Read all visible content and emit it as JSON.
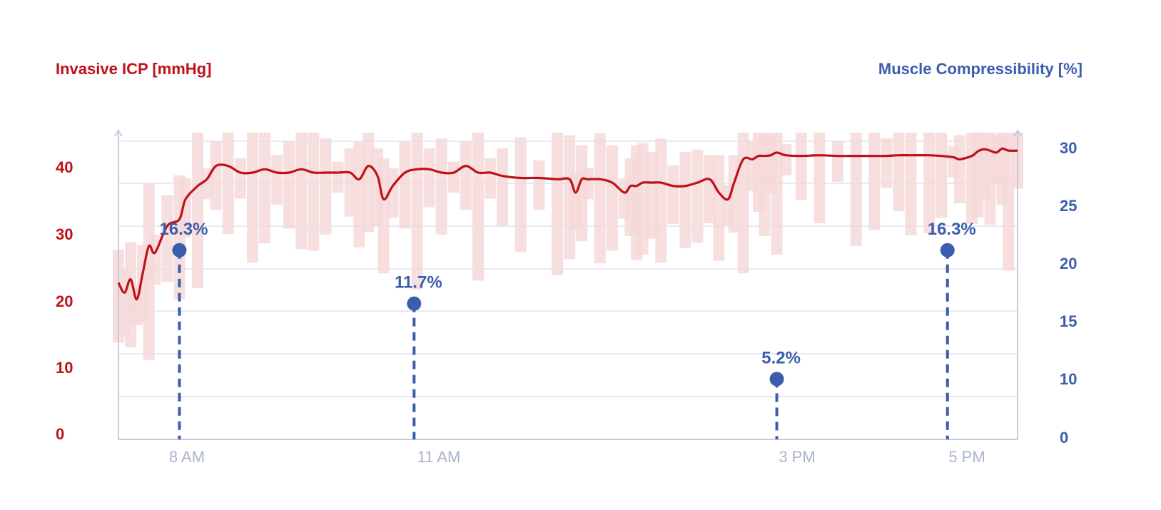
{
  "colors": {
    "icp": "#c0111a",
    "icp_band": "#f4d9d8",
    "muscle": "#3b5dae",
    "grid": "#d9dcea",
    "axis": "#c5cadc",
    "x_tick": "#aab3cc"
  },
  "chart_data": {
    "type": "line",
    "left_axis": {
      "label": "Invasive ICP [mmHg]",
      "ticks": [
        "40",
        "30",
        "20",
        "10",
        "0"
      ],
      "range": [
        0,
        45
      ]
    },
    "right_axis": {
      "label": "Muscle Compressibility [%]",
      "ticks": [
        "30",
        "25",
        "20",
        "15",
        "10",
        "0"
      ]
    },
    "x_ticks": [
      "8 AM",
      "11 AM",
      "3 PM",
      "5 PM"
    ],
    "icp_series": {
      "name": "Invasive ICP",
      "hours": [
        7.0,
        7.1,
        7.2,
        7.3,
        7.4,
        7.5,
        7.6,
        7.8,
        8.0,
        8.1,
        8.3,
        8.45,
        8.6,
        8.8,
        9.0,
        9.2,
        9.4,
        9.6,
        9.8,
        10.0,
        10.2,
        10.4,
        10.6,
        10.8,
        10.95,
        11.1,
        11.25,
        11.35,
        11.5,
        11.7,
        11.9,
        12.1,
        12.3,
        12.5,
        12.7,
        12.9,
        13.1,
        13.3,
        13.6,
        13.9,
        14.2,
        14.4,
        14.5,
        14.6,
        14.7,
        14.9,
        15.1,
        15.3,
        15.4,
        15.5,
        15.6,
        15.75,
        15.9,
        16.1,
        16.3,
        16.5,
        16.7,
        16.85,
        17.0,
        17.1,
        17.25,
        17.4,
        17.5,
        17.6,
        17.7,
        17.8,
        17.95,
        18.2,
        18.5,
        18.8,
        19.1,
        19.4,
        19.6,
        19.8,
        20.0,
        20.3,
        20.5,
        20.7,
        20.8,
        21.0,
        21.1,
        21.2,
        21.3,
        21.4,
        21.5,
        21.6,
        21.75
      ],
      "icp": [
        23.5,
        22,
        24,
        21,
        25,
        29,
        28,
        32,
        33,
        36,
        38,
        39,
        41,
        41,
        40,
        40,
        40.5,
        40,
        40,
        40.5,
        40,
        40,
        40,
        40,
        39,
        41,
        39.5,
        36,
        38,
        40,
        40.5,
        40.5,
        40,
        40,
        41,
        40,
        40,
        39.5,
        39.2,
        39.2,
        39,
        39,
        37,
        39,
        39,
        39,
        38.5,
        37,
        38,
        38,
        38.5,
        38.5,
        38.5,
        38,
        38,
        38.5,
        39,
        37,
        36,
        38.5,
        42,
        42,
        42.5,
        42.5,
        42.6,
        43,
        42.6,
        42.5,
        42.6,
        42.5,
        42.5,
        42.5,
        42.5,
        42.6,
        42.6,
        42.6,
        42.5,
        42.3,
        42.0,
        42.5,
        43.2,
        43.5,
        43.3,
        43.0,
        43.6,
        43.3,
        43.3
      ]
    },
    "muscle_points": [
      {
        "time": "8 AM",
        "value": 16.3,
        "label": "16.3%"
      },
      {
        "time": "11 AM",
        "value": 11.7,
        "label": "11.7%"
      },
      {
        "time": "3 PM",
        "value": 5.2,
        "label": "5.2%"
      },
      {
        "time": "5 PM",
        "value": 16.3,
        "label": "16.3%"
      }
    ]
  }
}
